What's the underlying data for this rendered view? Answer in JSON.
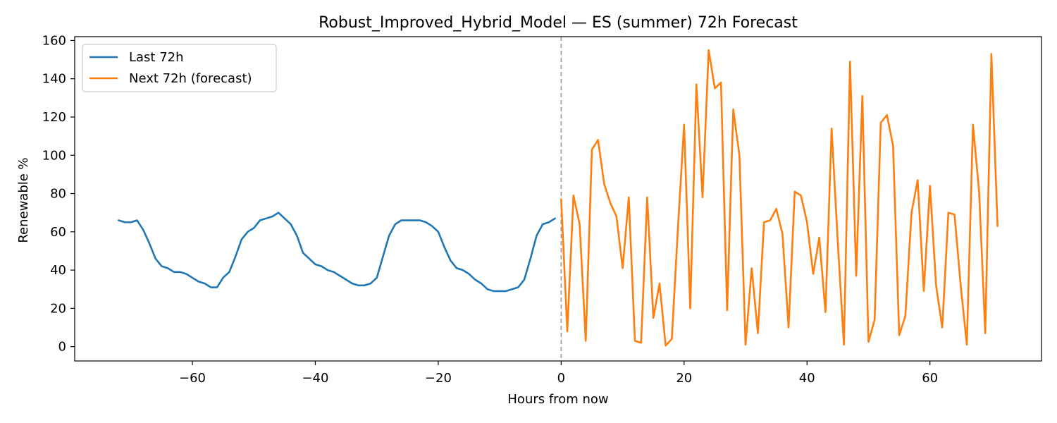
{
  "chart_data": {
    "type": "line",
    "title": "Robust_Improved_Hybrid_Model — ES (summer) 72h Forecast",
    "xlabel": "Hours from now",
    "ylabel": "Renewable %",
    "xlim": [
      -79.15,
      78.15
    ],
    "ylim": [
      -7.5,
      162
    ],
    "x_ticks": [
      -60,
      -40,
      -20,
      0,
      20,
      40,
      60
    ],
    "x_tick_labels": [
      "−60",
      "−40",
      "−20",
      "0",
      "20",
      "40",
      "60"
    ],
    "y_ticks": [
      0,
      20,
      40,
      60,
      80,
      100,
      120,
      140,
      160
    ],
    "y_tick_labels": [
      "0",
      "20",
      "40",
      "60",
      "80",
      "100",
      "120",
      "140",
      "160"
    ],
    "grid": false,
    "legend_position": "top-left",
    "vline": {
      "x": 0,
      "style": "dashed",
      "color": "#999999"
    },
    "series": [
      {
        "name": "Last 72h",
        "color": "#1f77b4",
        "x": [
          -72,
          -71,
          -70,
          -69,
          -68,
          -67,
          -66,
          -65,
          -64,
          -63,
          -62,
          -61,
          -60,
          -59,
          -58,
          -57,
          -56,
          -55,
          -54,
          -53,
          -52,
          -51,
          -50,
          -49,
          -48,
          -47,
          -46,
          -45,
          -44,
          -43,
          -42,
          -41,
          -40,
          -39,
          -38,
          -37,
          -36,
          -35,
          -34,
          -33,
          -32,
          -31,
          -30,
          -29,
          -28,
          -27,
          -26,
          -25,
          -24,
          -23,
          -22,
          -21,
          -20,
          -19,
          -18,
          -17,
          -16,
          -15,
          -14,
          -13,
          -12,
          -11,
          -10,
          -9,
          -8,
          -7,
          -6,
          -5,
          -4,
          -3,
          -2,
          -1
        ],
        "values": [
          66,
          65,
          65,
          66,
          61,
          54,
          46,
          42,
          41,
          39,
          39,
          38,
          36,
          34,
          33,
          31,
          31,
          36,
          39,
          47,
          56,
          60,
          62,
          66,
          67,
          68,
          70,
          67,
          64,
          58,
          49,
          46,
          43,
          42,
          40,
          39,
          37,
          35,
          33,
          32,
          32,
          33,
          36,
          47,
          58,
          64,
          66,
          66,
          66,
          66,
          65,
          63,
          60,
          52,
          45,
          41,
          40,
          38,
          35,
          33,
          30,
          29,
          29,
          29,
          30,
          31,
          35,
          46,
          58,
          64,
          65,
          67
        ]
      },
      {
        "name": "Next 72h (forecast)",
        "color": "#ff7f0e",
        "x": [
          0,
          1,
          2,
          3,
          4,
          5,
          6,
          7,
          8,
          9,
          10,
          11,
          12,
          13,
          14,
          15,
          16,
          17,
          18,
          19,
          20,
          21,
          22,
          23,
          24,
          25,
          26,
          27,
          28,
          29,
          30,
          31,
          32,
          33,
          34,
          35,
          36,
          37,
          38,
          39,
          40,
          41,
          42,
          43,
          44,
          45,
          46,
          47,
          48,
          49,
          50,
          51,
          52,
          53,
          54,
          55,
          56,
          57,
          58,
          59,
          60,
          61,
          62,
          63,
          64,
          65,
          66,
          67,
          68,
          69,
          70,
          71
        ],
        "values": [
          77,
          8,
          79,
          64,
          3,
          103,
          108,
          85,
          75,
          68,
          41,
          78,
          3,
          2,
          78,
          15,
          33,
          0.5,
          4,
          62,
          116,
          20,
          137,
          78,
          155,
          135,
          138,
          19,
          124,
          100,
          1,
          41,
          7,
          65,
          66,
          72,
          59,
          10,
          81,
          79,
          65,
          38,
          57,
          18,
          114,
          55,
          1,
          149,
          37,
          131,
          2.5,
          14,
          117,
          121,
          105,
          6,
          16,
          70,
          87,
          29,
          84,
          32,
          10,
          70,
          69,
          32,
          1,
          116,
          81,
          7,
          153,
          63
        ]
      }
    ]
  }
}
